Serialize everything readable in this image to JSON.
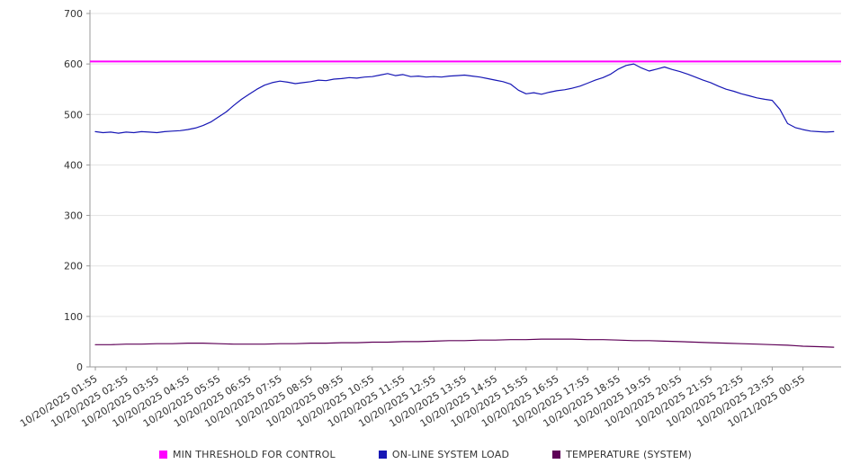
{
  "chart_data": {
    "type": "line",
    "title": "",
    "xlabel": "",
    "ylabel": "",
    "ylim": [
      0,
      700
    ],
    "grid": "horizontal",
    "legend_position": "bottom",
    "y_axis": {
      "ticks": [
        0,
        100,
        200,
        300,
        400,
        500,
        600,
        700
      ]
    },
    "x_axis": {
      "categories": [
        "10/20/2025 01:55",
        "10/20/2025 02:55",
        "10/20/2025 03:55",
        "10/20/2025 04:55",
        "10/20/2025 05:55",
        "10/20/2025 06:55",
        "10/20/2025 07:55",
        "10/20/2025 08:55",
        "10/20/2025 09:55",
        "10/20/2025 10:55",
        "10/20/2025 11:55",
        "10/20/2025 12:55",
        "10/20/2025 13:55",
        "10/20/2025 14:55",
        "10/20/2025 15:55",
        "10/20/2025 16:55",
        "10/20/2025 17:55",
        "10/20/2025 18:55",
        "10/20/2025 19:55",
        "10/20/2025 20:55",
        "10/20/2025 21:55",
        "10/20/2025 22:55",
        "10/20/2025 23:55",
        "10/21/2025 00:55"
      ]
    },
    "series": [
      {
        "name": "MIN THRESHOLD FOR CONTROL",
        "type": "threshold",
        "color": "#ff00ff",
        "width": 2,
        "value": 605
      },
      {
        "name": "ON-LINE SYSTEM LOAD",
        "type": "line",
        "color": "#1717b5",
        "width": 1.2,
        "x_start_hours": 0,
        "x_step_hours": 0.25,
        "values": [
          466,
          464,
          465,
          463,
          465,
          464,
          466,
          465,
          464,
          466,
          467,
          468,
          470,
          473,
          478,
          485,
          495,
          505,
          518,
          530,
          540,
          550,
          558,
          563,
          566,
          564,
          561,
          563,
          565,
          568,
          567,
          570,
          571,
          573,
          572,
          574,
          575,
          578,
          581,
          577,
          579,
          575,
          576,
          574,
          575,
          574,
          576,
          577,
          578,
          576,
          574,
          571,
          568,
          565,
          560,
          548,
          541,
          543,
          540,
          544,
          547,
          549,
          552,
          556,
          562,
          568,
          573,
          580,
          590,
          597,
          600,
          592,
          586,
          590,
          594,
          589,
          585,
          580,
          574,
          568,
          563,
          556,
          550,
          546,
          541,
          537,
          533,
          530,
          528,
          510,
          482,
          474,
          470,
          467,
          466,
          465,
          466
        ]
      },
      {
        "name": "TEMPERATURE (SYSTEM)",
        "type": "line",
        "color": "#5e0057",
        "width": 1.2,
        "x_start_hours": 0,
        "x_step_hours": 0.5,
        "values": [
          44,
          44,
          45,
          45,
          46,
          46,
          47,
          47,
          46,
          45,
          45,
          45,
          46,
          46,
          47,
          47,
          48,
          48,
          49,
          49,
          50,
          50,
          51,
          52,
          52,
          53,
          53,
          54,
          54,
          55,
          55,
          55,
          54,
          54,
          53,
          52,
          52,
          51,
          50,
          49,
          48,
          47,
          46,
          45,
          44,
          43,
          41,
          40,
          39
        ]
      }
    ],
    "legend": [
      {
        "label": "MIN THRESHOLD FOR CONTROL",
        "color": "#ff00ff"
      },
      {
        "label": "ON-LINE SYSTEM LOAD",
        "color": "#1717b5"
      },
      {
        "label": "TEMPERATURE (SYSTEM)",
        "color": "#5e0057"
      }
    ]
  }
}
